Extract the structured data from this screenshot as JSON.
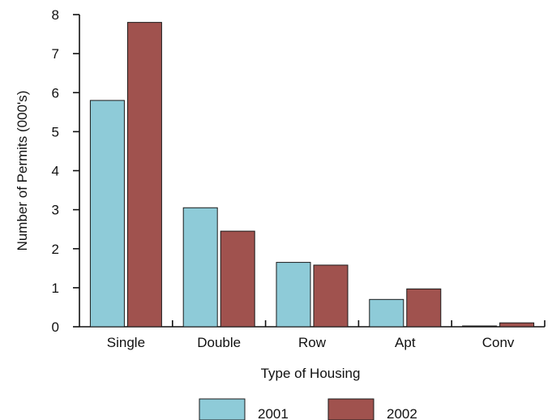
{
  "chart_data": {
    "type": "bar",
    "title": "",
    "xlabel": "Type of Housing",
    "ylabel": "Number of Permits (000's)",
    "categories": [
      "Single",
      "Double",
      "Row",
      "Apt",
      "Conv"
    ],
    "series": [
      {
        "name": "2001",
        "values": [
          5.8,
          3.05,
          1.65,
          0.7,
          0.02
        ],
        "color": "#8ecbd8"
      },
      {
        "name": "2002",
        "values": [
          7.8,
          2.45,
          1.58,
          0.97,
          0.1
        ],
        "color": "#a0524e"
      }
    ],
    "ylim": [
      0,
      8
    ],
    "yticks": [
      0,
      1,
      2,
      3,
      4,
      5,
      6,
      7,
      8
    ],
    "grid": false,
    "legend_position": "bottom"
  }
}
